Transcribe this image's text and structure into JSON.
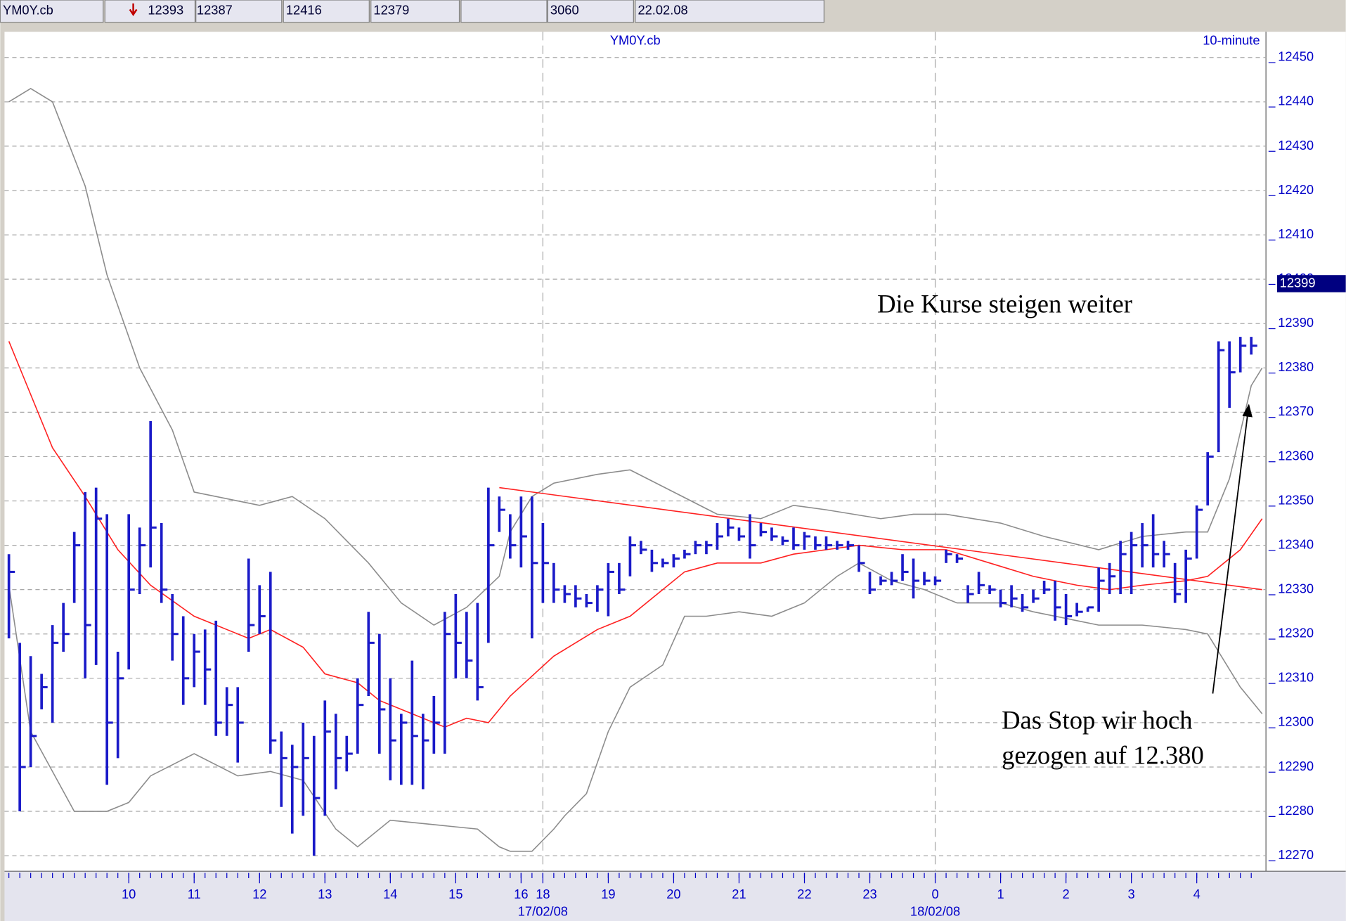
{
  "toolbar": {
    "symbol": "YM0Y.cb",
    "fields": [
      "12393",
      "12387",
      "12416",
      "12379",
      "3060",
      "22.02.08"
    ]
  },
  "chart_data": {
    "type": "ohlc",
    "title": "YM0Y.cb",
    "subtitle": "10-minute",
    "color": "#1a1ac8",
    "high": [
      12338,
      12318,
      12315,
      12311,
      12322,
      12327,
      12343,
      12352,
      12353,
      12347,
      12316,
      12347,
      12344,
      12368,
      12345,
      12329,
      12324,
      12320,
      12321,
      12323,
      12308,
      12308,
      12337,
      12331,
      12334,
      12298,
      12295,
      12300,
      12297,
      12305,
      12302,
      12297,
      12310,
      12325,
      12320,
      12310,
      12302,
      12314,
      12302,
      12306,
      12325,
      12329,
      12325,
      12327,
      12353,
      12351,
      12347,
      12351,
      12351,
      12345,
      12336,
      12331,
      12331,
      12329,
      12331,
      12336,
      12336,
      12342,
      12341,
      12339,
      12337,
      12338,
      12339,
      12341,
      12341,
      12345,
      12346,
      12344,
      12347,
      12345,
      12344,
      12342,
      12344,
      12343,
      12342,
      12342,
      12341,
      12341,
      12340,
      12334,
      12333,
      12334,
      12338,
      12337,
      12334,
      12333,
      12339,
      12338,
      12331,
      12334,
      12331,
      12330,
      12331,
      12329,
      12330,
      12332,
      12332,
      12329,
      12327,
      12326,
      12335,
      12336,
      12341,
      12343,
      12345,
      12347,
      12341,
      12336,
      12339,
      12349,
      12361,
      12386,
      12386,
      12387,
      12387
    ],
    "low": [
      12319,
      12280,
      12290,
      12303,
      12300,
      12316,
      12327,
      12310,
      12313,
      12286,
      12292,
      12312,
      12329,
      12335,
      12327,
      12314,
      12304,
      12308,
      12304,
      12297,
      12297,
      12291,
      12316,
      12320,
      12293,
      12281,
      12275,
      12279,
      12270,
      12279,
      12285,
      12289,
      12293,
      12306,
      12293,
      12287,
      12286,
      12286,
      12285,
      12293,
      12293,
      12310,
      12310,
      12305,
      12318,
      12343,
      12337,
      12335,
      12319,
      12327,
      12327,
      12327,
      12326,
      12326,
      12325,
      12324,
      12329,
      12333,
      12338,
      12334,
      12335,
      12335,
      12337,
      12338,
      12338,
      12339,
      12342,
      12341,
      12337,
      12342,
      12341,
      12340,
      12339,
      12339,
      12339,
      12339,
      12339,
      12339,
      12334,
      12329,
      12331,
      12331,
      12332,
      12328,
      12331,
      12331,
      12336,
      12336,
      12327,
      12329,
      12329,
      12326,
      12326,
      12325,
      12327,
      12329,
      12323,
      12322,
      12324,
      12325,
      12325,
      12329,
      12329,
      12329,
      12335,
      12335,
      12335,
      12327,
      12327,
      12337,
      12349,
      12361,
      12371,
      12379,
      12383
    ],
    "close": [
      12334,
      12290,
      12297,
      12308,
      12318,
      12320,
      12340,
      12322,
      12346,
      12300,
      12310,
      12330,
      12340,
      12344,
      12330,
      12320,
      12310,
      12316,
      12312,
      12300,
      12304,
      12300,
      12322,
      12324,
      12296,
      12292,
      12290,
      12292,
      12283,
      12298,
      12292,
      12293,
      12304,
      12318,
      12303,
      12296,
      12300,
      12297,
      12296,
      12300,
      12320,
      12318,
      12314,
      12308,
      12340,
      12348,
      12340,
      12342,
      12336,
      12336,
      12330,
      12329,
      12328,
      12327,
      12330,
      12334,
      12330,
      12340,
      12339,
      12336,
      12336,
      12337,
      12338,
      12340,
      12340,
      12342,
      12344,
      12342,
      12340,
      12343,
      12342,
      12341,
      12340,
      12342,
      12340,
      12340,
      12340,
      12340,
      12336,
      12330,
      12332,
      12332,
      12334,
      12332,
      12332,
      12332,
      12338,
      12337,
      12329,
      12331,
      12330,
      12327,
      12328,
      12326,
      12328,
      12330,
      12326,
      12324,
      12325,
      12326,
      12332,
      12333,
      12338,
      12340,
      12340,
      12338,
      12338,
      12329,
      12337,
      12348,
      12360,
      12384,
      12379,
      12385,
      12385
    ],
    "overlays": [
      {
        "color": "#8c8c8c",
        "x": [
          0,
          2,
          4,
          7,
          9,
          12,
          15,
          17,
          23,
          26,
          29,
          33,
          36,
          39,
          42,
          45,
          46,
          48,
          50,
          54,
          57,
          61,
          65,
          69,
          72,
          75,
          80,
          83,
          86,
          91,
          95,
          100,
          104,
          108,
          110,
          112,
          114,
          115
        ],
        "values": [
          12440,
          12443,
          12440,
          12421,
          12401,
          12380,
          12366,
          12352,
          12349,
          12351,
          12346,
          12336,
          12327,
          12322,
          12326,
          12333,
          12343,
          12351,
          12354,
          12356,
          12357,
          12352,
          12347,
          12346,
          12349,
          12348,
          12346,
          12347,
          12347,
          12345,
          12342,
          12339,
          12342,
          12343,
          12343,
          12355,
          12376,
          12380
        ]
      },
      {
        "color": "#8c8c8c",
        "x": [
          0,
          2,
          6,
          9,
          11,
          13,
          17,
          21,
          24,
          27,
          30,
          32,
          35,
          39,
          43,
          45,
          46,
          48,
          50,
          51,
          53,
          55,
          57,
          60,
          62,
          64,
          67,
          70,
          73,
          76,
          78,
          81,
          84,
          87,
          91,
          94,
          98,
          100,
          104,
          108,
          110,
          113,
          115
        ],
        "values": [
          12331,
          12298,
          12280,
          12280,
          12282,
          12288,
          12293,
          12288,
          12289,
          12287,
          12276,
          12272,
          12278,
          12277,
          12276,
          12272,
          12271,
          12271,
          12276,
          12279,
          12284,
          12298,
          12308,
          12313,
          12324,
          12324,
          12325,
          12324,
          12327,
          12333,
          12336,
          12332,
          12330,
          12327,
          12327,
          12325,
          12323,
          12322,
          12322,
          12321,
          12320,
          12308,
          12302
        ]
      },
      {
        "color": "#ff2020",
        "x": [
          0,
          2,
          4,
          7,
          10,
          13,
          17,
          20,
          22,
          24,
          27,
          29,
          32,
          34,
          37,
          40,
          42,
          44,
          46,
          50,
          54,
          57,
          60,
          62,
          65,
          69,
          72,
          75,
          78,
          82,
          86,
          90,
          94,
          98,
          101,
          104,
          108,
          110,
          113,
          115
        ],
        "values": [
          12386,
          12374,
          12362,
          12351,
          12339,
          12331,
          12324,
          12321,
          12319,
          12321,
          12317,
          12311,
          12309,
          12305,
          12302,
          12299,
          12301,
          12300,
          12306,
          12315,
          12321,
          12324,
          12330,
          12334,
          12336,
          12336,
          12338,
          12339,
          12340,
          12339,
          12339,
          12336,
          12333,
          12331,
          12330,
          12331,
          12332,
          12333,
          12339,
          12346
        ]
      },
      {
        "color": "#ff2020",
        "x": [
          45,
          115
        ],
        "values": [
          12353,
          12330
        ]
      }
    ],
    "last_price": 12399,
    "xlim": [
      -0.4,
      115.35
    ],
    "ylim": [
      12266.5,
      12455.8
    ],
    "yticks": [
      12270,
      12280,
      12290,
      12300,
      12310,
      12320,
      12330,
      12340,
      12350,
      12360,
      12370,
      12380,
      12390,
      12400,
      12410,
      12420,
      12430,
      12440,
      12450
    ],
    "xticks": [
      {
        "value": 11,
        "label": "10"
      },
      {
        "value": 17,
        "label": "11"
      },
      {
        "value": 23,
        "label": "12"
      },
      {
        "value": 29,
        "label": "13"
      },
      {
        "value": 35,
        "label": "14"
      },
      {
        "value": 41,
        "label": "15"
      },
      {
        "value": 47,
        "label": "16"
      },
      {
        "value": 49,
        "label": "18"
      },
      {
        "value": 55,
        "label": "19"
      },
      {
        "value": 61,
        "label": "20"
      },
      {
        "value": 67,
        "label": "21"
      },
      {
        "value": 73,
        "label": "22"
      },
      {
        "value": 79,
        "label": "23"
      },
      {
        "value": 85,
        "label": "0"
      },
      {
        "value": 91,
        "label": "1"
      },
      {
        "value": 97,
        "label": "2"
      },
      {
        "value": 103,
        "label": "3"
      },
      {
        "value": 109,
        "label": "4"
      }
    ],
    "date_ticks": [
      {
        "value": 49,
        "label": "17/02/08"
      },
      {
        "value": 85,
        "label": "18/02/08"
      }
    ],
    "grid": true,
    "annotations": [
      {
        "text": "Die Kurse steigen weiter"
      },
      {
        "lines": [
          "Das Stop wir hoch",
          "gezogen auf 12.380"
        ]
      }
    ]
  }
}
